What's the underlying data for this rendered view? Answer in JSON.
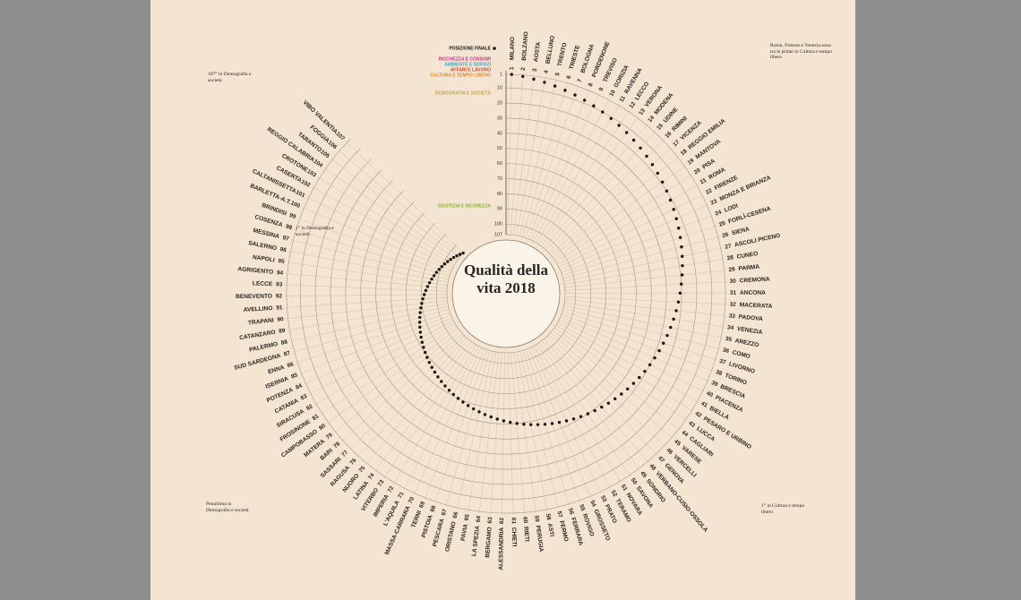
{
  "chart_data": {
    "type": "radial",
    "title": "Qualità della vita 2018",
    "legend_title": "POSIZIONE FINALE",
    "categories": [
      "MILANO",
      "BOLZANO",
      "AOSTA",
      "BELLUNO",
      "TRENTO",
      "TRIESTE",
      "BOLOGNA",
      "PORDENONE",
      "TREVISO",
      "GORIZIA",
      "RAVENNA",
      "LECCO",
      "VERONA",
      "MODENA",
      "UDINE",
      "RIMINI",
      "VICENZA",
      "REGGIO EMILIA",
      "MANTOVA",
      "PISA",
      "ROMA",
      "FIRENZE",
      "MONZA E BRIANZA",
      "LODI",
      "FORLÌ-CESENA",
      "SIENA",
      "ASCOLI PICENO",
      "CUNEO",
      "PARMA",
      "CREMONA",
      "ANCONA",
      "MACERATA",
      "PADOVA",
      "VENEZIA",
      "AREZZO",
      "COMO",
      "LIVORNO",
      "TORINO",
      "BRESCIA",
      "PIACENZA",
      "BIELLA",
      "PESARO E URBINO",
      "LUCCA",
      "CAGLIARI",
      "VARESE",
      "VERCELLI",
      "GENOVA",
      "VERBANO-CUSIO-OSSOLA",
      "SONDRIO",
      "SAVONA",
      "NOVARA",
      "TERAMO",
      "PRATO",
      "GROSSETO",
      "ROVIGO",
      "FERRARA",
      "FERMO",
      "ASTI",
      "PERUGIA",
      "RIETI",
      "CHIETI",
      "ALESSANDRIA",
      "BERGAMO",
      "LA SPEZIA",
      "PAVIA",
      "ORISTANO",
      "PESCARA",
      "PISTOIA",
      "TERNI",
      "MASSA-CARRARA",
      "L'AQUILA",
      "IMPERIA",
      "VITERBO",
      "LATINA",
      "NUORO",
      "RAGUSA",
      "SASSARI",
      "BARI",
      "MATERA",
      "CAMPOBASSO",
      "FROSINONE",
      "SIRACUSA",
      "CATANIA",
      "POTENZA",
      "ISERNIA",
      "ENNA",
      "SUD SARDEGNA",
      "PALERMO",
      "CATANZARO",
      "TRAPANI",
      "AVELLINO",
      "BENEVENTO",
      "LECCE",
      "AGRIGENTO",
      "NAPOLI",
      "SALERNO",
      "MESSINA",
      "COSENZA",
      "BRINDISI",
      "BARLETTA-A.T.",
      "CALTANISSETTA",
      "CASERTA",
      "CROTONE",
      "REGGIO CALABRIA",
      "TARANTO",
      "FOGGIA",
      "VIBO VALENTIA"
    ],
    "series": [
      {
        "name": "POSIZIONE FINALE",
        "color": "#1a1614",
        "values": [
          1,
          2,
          3,
          4,
          5,
          6,
          7,
          8,
          9,
          10,
          11,
          12,
          13,
          14,
          15,
          16,
          17,
          18,
          19,
          20,
          21,
          22,
          23,
          24,
          25,
          26,
          27,
          28,
          29,
          30,
          31,
          32,
          33,
          34,
          35,
          36,
          37,
          38,
          39,
          40,
          41,
          42,
          43,
          44,
          45,
          46,
          47,
          48,
          49,
          50,
          51,
          52,
          53,
          54,
          55,
          56,
          57,
          58,
          59,
          60,
          61,
          62,
          63,
          64,
          65,
          66,
          67,
          68,
          69,
          70,
          71,
          72,
          73,
          74,
          75,
          76,
          77,
          78,
          79,
          80,
          81,
          82,
          83,
          84,
          85,
          86,
          87,
          88,
          89,
          90,
          91,
          92,
          93,
          94,
          95,
          96,
          97,
          98,
          99,
          100,
          101,
          102,
          103,
          104,
          105,
          106,
          107
        ]
      }
    ],
    "indicators": [
      {
        "name": "RICCHEZZA E CONSUMI",
        "color": "#c2388a"
      },
      {
        "name": "AMBIENTE E SERVIZI",
        "color": "#3aa6d9"
      },
      {
        "name": "AFFARI E LAVORO",
        "color": "#d9462b"
      },
      {
        "name": "CULTURA E TEMPO LIBERO",
        "color": "#e8891e"
      },
      {
        "name": "DEMOGRAFIA E SOCIETÀ",
        "color": "#c9a25a"
      },
      {
        "name": "GIUSTIZIA E SICUREZZA",
        "color": "#8ab33b"
      }
    ],
    "ylim": [
      1,
      107
    ],
    "yticks": [
      1,
      10,
      20,
      30,
      40,
      50,
      60,
      70,
      80,
      90,
      100,
      107
    ],
    "grid": true
  },
  "annotations": [
    "1° in Cultura e tempo libero",
    "1° in Demografia e società",
    "Roma, Firenze e Venezia sono tra le prime in Cultura e tempo libero",
    "Penultima in Demografia e società",
    "107° in Demografia e società"
  ]
}
